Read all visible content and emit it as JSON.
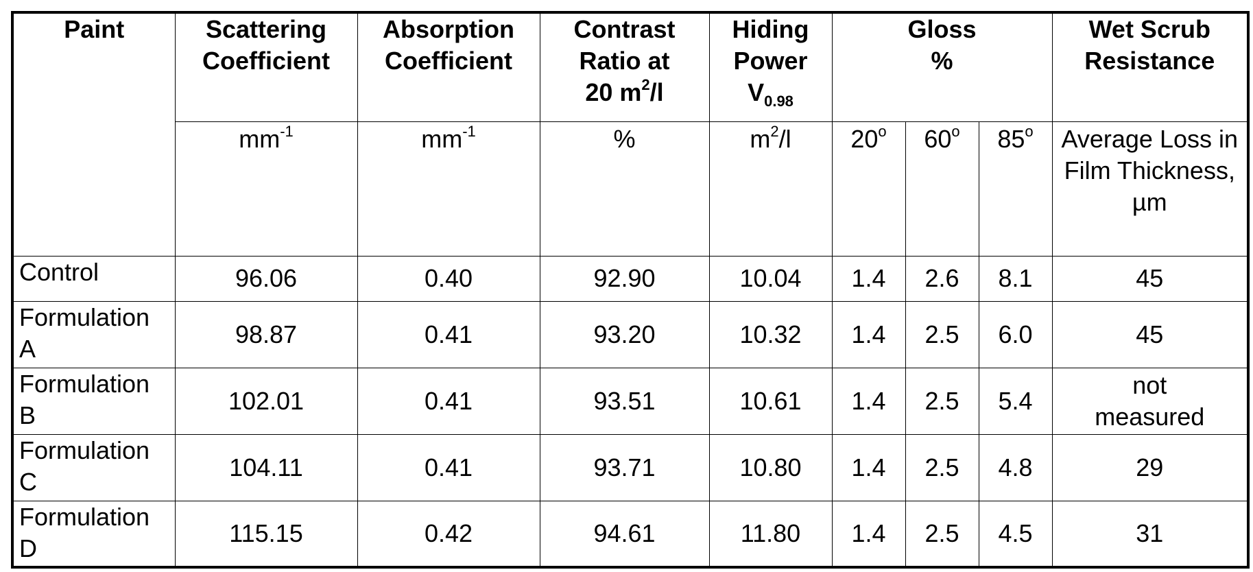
{
  "headers": {
    "paint": "Paint",
    "scattering": [
      "Scattering",
      "Coefficient"
    ],
    "absorption": [
      "Absorption",
      "Coefficient"
    ],
    "contrast": {
      "line1": "Contrast",
      "line2": "Ratio at",
      "line3_pre": "20 m",
      "line3_sup": "2",
      "line3_post": "/l"
    },
    "hiding": {
      "line1": "Hiding",
      "line2": "Power",
      "line3_main": "V",
      "line3_sub": "0.98"
    },
    "gloss": [
      "Gloss",
      "%"
    ],
    "wet_scrub": [
      "Wet Scrub",
      "Resistance"
    ]
  },
  "units": {
    "scattering": {
      "base": "mm",
      "sup": "-1"
    },
    "absorption": {
      "base": "mm",
      "sup": "-1"
    },
    "contrast": "%",
    "hiding": {
      "base": "m",
      "sup": "2",
      "post": "/l"
    },
    "gloss_angles": [
      {
        "value": "20",
        "sup": "o"
      },
      {
        "value": "60",
        "sup": "o"
      },
      {
        "value": "85",
        "sup": "o"
      }
    ],
    "wet_scrub": "Average Loss in Film Thickness, µm"
  },
  "rows": [
    {
      "name": [
        "Control",
        ""
      ],
      "scattering": "96.06",
      "absorption": "0.40",
      "contrast": "92.90",
      "hiding": "10.04",
      "g20": "1.4",
      "g60": "2.6",
      "g85": "8.1",
      "wet_scrub": [
        "45",
        ""
      ]
    },
    {
      "name": [
        "Formulation",
        "A"
      ],
      "scattering": "98.87",
      "absorption": "0.41",
      "contrast": "93.20",
      "hiding": "10.32",
      "g20": "1.4",
      "g60": "2.5",
      "g85": "6.0",
      "wet_scrub": [
        "45",
        ""
      ]
    },
    {
      "name": [
        "Formulation",
        "B"
      ],
      "scattering": "102.01",
      "absorption": "0.41",
      "contrast": "93.51",
      "hiding": "10.61",
      "g20": "1.4",
      "g60": "2.5",
      "g85": "5.4",
      "wet_scrub": [
        "not",
        "measured"
      ]
    },
    {
      "name": [
        "Formulation",
        "C"
      ],
      "scattering": "104.11",
      "absorption": "0.41",
      "contrast": "93.71",
      "hiding": "10.80",
      "g20": "1.4",
      "g60": "2.5",
      "g85": "4.8",
      "wet_scrub": [
        "29",
        ""
      ]
    },
    {
      "name": [
        "Formulation",
        "D"
      ],
      "scattering": "115.15",
      "absorption": "0.42",
      "contrast": "94.61",
      "hiding": "11.80",
      "g20": "1.4",
      "g60": "2.5",
      "g85": "4.5",
      "wet_scrub": [
        "31",
        ""
      ]
    }
  ]
}
